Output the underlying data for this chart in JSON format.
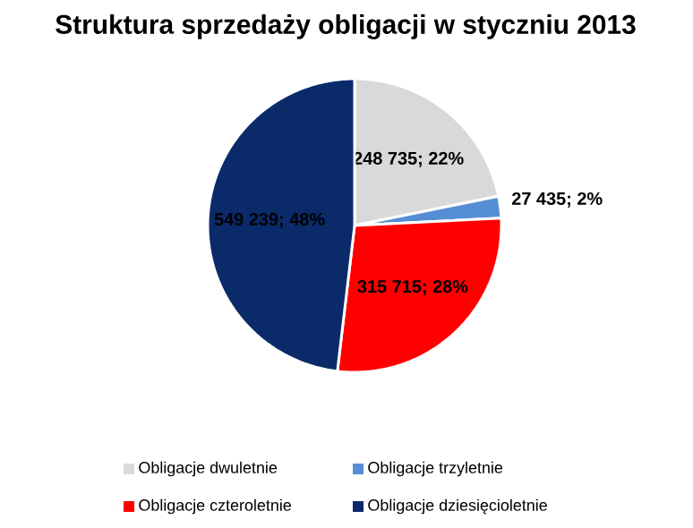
{
  "chart_data": {
    "type": "pie",
    "title": "Struktura sprzedaży obligacji w styczniu 2013",
    "categories": [
      "Obligacje dwuletnie",
      "Obligacje trzyletnie",
      "Obligacje czteroletnie",
      "Obligacje dziesięcioletnie"
    ],
    "values": [
      248735,
      27435,
      315715,
      549239
    ],
    "colors": [
      "#d9d9d9",
      "#558ed5",
      "#ff0000",
      "#0a2a6a"
    ],
    "value_labels": [
      "248 735; 22%",
      "27 435; 2%",
      "315 715; 28%",
      "549 239; 48%"
    ],
    "legend": "bottom"
  }
}
